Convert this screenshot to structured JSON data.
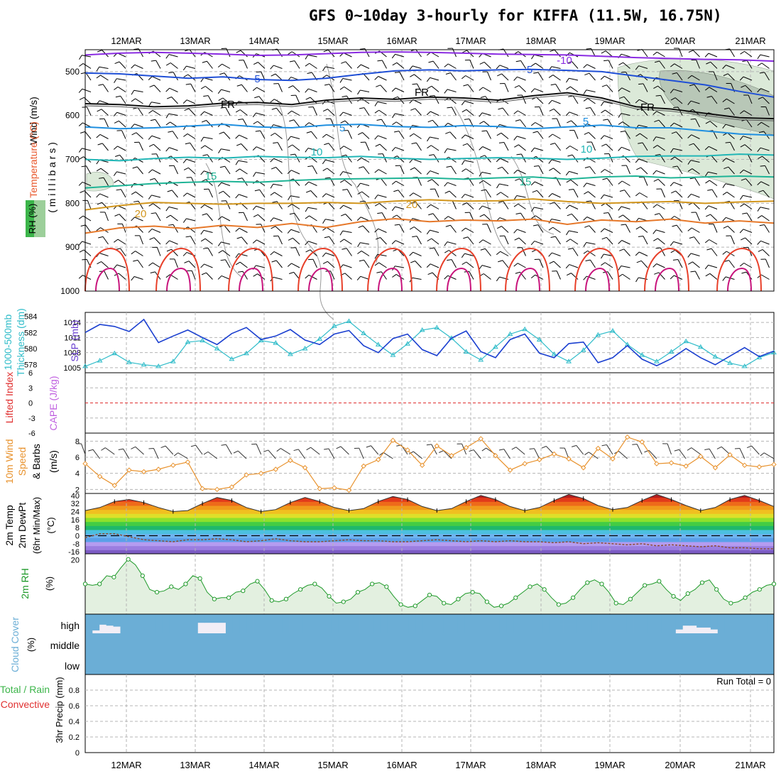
{
  "title": "GFS 0~10day 3-hourly for KIFFA (11.5W, 16.75N)",
  "colors": {
    "grid": "#b4b4b4",
    "wind_barb": "#000000",
    "temp_cold": "#7b2cbf",
    "temp_mid": "#1b63d6",
    "temp_warm": "#e8572c",
    "rh_fill": "#dbe9d8",
    "cloud": "#6baed6",
    "thickness": "#2fbcc9",
    "slp": "#1a3fd0",
    "wind10m": "#e8922d",
    "rh2m": "#1f9a2a",
    "lifted_zero": "#e03030"
  },
  "chart_data": [
    {
      "name": "upper-air",
      "type": "contour",
      "top_dates": [
        "12MAR",
        "13MAR",
        "14MAR",
        "15MAR",
        "16MAR",
        "17MAR",
        "18MAR",
        "19MAR",
        "20MAR",
        "21MAR"
      ],
      "ylabel_parts": [
        "Wind (m/s)",
        "Temperature (°C)",
        "RH (%)",
        "( m i l l i b a r s )"
      ],
      "y_ticks": [
        500,
        600,
        700,
        800,
        900,
        1000
      ],
      "ylim": [
        450,
        1000
      ],
      "contours": [
        {
          "label": "-10",
          "color": "#8a2be2",
          "values": [
            462,
            458,
            456,
            458,
            460,
            463,
            462,
            459,
            456,
            455,
            456,
            458,
            460,
            461,
            462,
            465,
            468,
            470,
            472,
            473,
            476
          ]
        },
        {
          "label": "-5",
          "color": "#1f4fd6",
          "values": [
            503,
            505,
            510,
            515,
            512,
            518,
            520,
            515,
            506,
            498,
            496,
            498,
            496,
            495,
            497,
            500,
            510,
            520,
            530,
            545,
            558
          ]
        },
        {
          "label": "FR",
          "color": "#111111",
          "values": [
            573,
            575,
            580,
            578,
            572,
            570,
            575,
            565,
            560,
            563,
            558,
            560,
            565,
            555,
            548,
            560,
            580,
            585,
            595,
            605,
            607
          ]
        },
        {
          "label": "5",
          "color": "#1f8fe0",
          "values": [
            626,
            630,
            628,
            624,
            620,
            626,
            628,
            622,
            620,
            625,
            627,
            623,
            625,
            630,
            626,
            622,
            628,
            628,
            635,
            642,
            645
          ]
        },
        {
          "label": "10",
          "color": "#22b6b6",
          "values": [
            700,
            703,
            698,
            695,
            697,
            693,
            695,
            696,
            693,
            697,
            700,
            698,
            696,
            697,
            700,
            697,
            693,
            692,
            692,
            688,
            690
          ]
        },
        {
          "label": "15",
          "color": "#1fb496",
          "values": [
            765,
            760,
            755,
            752,
            750,
            752,
            748,
            745,
            744,
            743,
            742,
            745,
            742,
            740,
            745,
            740,
            738,
            742,
            740,
            738,
            740
          ]
        },
        {
          "label": "20",
          "color": "#d2961e",
          "values": [
            815,
            805,
            798,
            800,
            802,
            800,
            800,
            798,
            800,
            795,
            792,
            795,
            794,
            790,
            796,
            800,
            798,
            796,
            800,
            797,
            795
          ]
        },
        {
          "label": "25",
          "color": "#e6782a",
          "values": [
            868,
            856,
            852,
            858,
            850,
            855,
            846,
            855,
            842,
            835,
            842,
            838,
            840,
            836,
            848,
            838,
            842,
            836,
            845,
            840,
            845
          ]
        }
      ]
    },
    {
      "name": "thickness-slp",
      "type": "line",
      "ylabel_left": "1000-500mb Thickness (dm)",
      "ylabel_right": "SLP (mb)",
      "thickness_ticks": [
        578,
        580,
        582,
        584
      ],
      "slp_ticks": [
        1005,
        1008,
        1011,
        1014
      ],
      "series": [
        {
          "name": "Thickness (dm)",
          "ylim": [
            577,
            584.5
          ],
          "values": [
            577.8,
            578.5,
            579.4,
            578.3,
            578.0,
            577.8,
            578.4,
            580.8,
            581.0,
            580.0,
            578.7,
            579.4,
            581.0,
            580.7,
            579.3,
            580.0,
            581.2,
            582.8,
            583.4,
            581.9,
            580.5,
            579.2,
            580.6,
            582.3,
            582.6,
            581.3,
            579.6,
            578.6,
            580.2,
            581.8,
            582.4,
            581.1,
            579.3,
            578.4,
            579.8,
            581.7,
            582.2,
            580.5,
            579.2,
            578.4,
            579.6,
            580.9,
            580.2,
            579.0,
            578.2,
            577.8,
            578.9,
            579.5
          ]
        },
        {
          "name": "SLP (mb)",
          "ylim": [
            1004,
            1016
          ],
          "values": [
            1012.0,
            1013.6,
            1013.2,
            1012.2,
            1014.6,
            1010.0,
            1011.3,
            1012.5,
            1011.0,
            1009.6,
            1011.8,
            1013.0,
            1010.6,
            1011.3,
            1012.6,
            1010.5,
            1009.6,
            1011.7,
            1012.4,
            1009.4,
            1008.0,
            1010.8,
            1011.7,
            1008.6,
            1007.4,
            1010.9,
            1012.3,
            1008.2,
            1007.0,
            1010.6,
            1011.7,
            1007.9,
            1007.0,
            1009.8,
            1010.1,
            1006.0,
            1007.0,
            1009.4,
            1006.7,
            1005.4,
            1006.8,
            1008.8,
            1007.0,
            1005.6,
            1007.3,
            1009.0,
            1007.2,
            1008.3
          ]
        }
      ]
    },
    {
      "name": "lifted-cape",
      "type": "line",
      "ylabel_left": "Lifted Index",
      "ylabel_right": "CAPE (J/kg)",
      "y_ticks": [
        -6,
        -3,
        0,
        3,
        6
      ],
      "tick_labels": [
        "6",
        "3",
        "0",
        "-3",
        "-6"
      ],
      "ylim": [
        -6,
        6
      ],
      "zero_line": 0
    },
    {
      "name": "wind10m",
      "type": "line",
      "ylabel": "10m Wind Speed & Barbs (m/s)",
      "y_ticks": [
        2,
        4,
        6,
        8
      ],
      "ylim": [
        1.5,
        9
      ],
      "values": [
        5.2,
        3.6,
        2.5,
        4.4,
        4.2,
        4.5,
        5.0,
        5.4,
        2.1,
        2.0,
        2.3,
        3.8,
        4.0,
        4.5,
        5.6,
        4.7,
        2.1,
        2.2,
        1.9,
        4.9,
        5.7,
        8.1,
        6.9,
        5.0,
        7.4,
        6.2,
        7.2,
        8.3,
        6.2,
        4.4,
        5.2,
        5.7,
        6.4,
        5.8,
        4.7,
        7.1,
        5.8,
        8.5,
        7.9,
        5.2,
        5.3,
        4.9,
        6.1,
        4.7,
        6.3,
        5.0,
        4.8,
        5.1
      ]
    },
    {
      "name": "temp2m",
      "type": "area",
      "ylabel": "2m Temp 2m DewPt (6hr Min/Max) (°C)",
      "y_ticks": [
        -16,
        -8,
        0,
        8,
        16,
        24,
        32,
        40
      ],
      "ylim": [
        -18,
        42
      ],
      "temperature": [
        25,
        28,
        34,
        36,
        33,
        28,
        24,
        25,
        32,
        38,
        35,
        28,
        24,
        26,
        33,
        38,
        34,
        28,
        25,
        27,
        34,
        39,
        36,
        29,
        25,
        27,
        34,
        40,
        36,
        29,
        25,
        28,
        35,
        41,
        37,
        30,
        26,
        28,
        35,
        41,
        36,
        30,
        25,
        28,
        36,
        40,
        35,
        29
      ],
      "dewpoint": [
        -2,
        2,
        2,
        -1,
        -4,
        -5,
        -6,
        -4,
        -4,
        -3,
        -4,
        -6,
        -5,
        -3,
        -5,
        -6,
        -6,
        -5,
        -4,
        -5,
        -5,
        -6,
        -6,
        -5,
        -4,
        -5,
        -6,
        -5,
        -6,
        -5,
        -6,
        -6,
        -7,
        -6,
        -8,
        -7,
        -8,
        -9,
        -8,
        -10,
        -9,
        -10,
        -11,
        -10,
        -12,
        -12,
        -13,
        -13
      ]
    },
    {
      "name": "rh2m",
      "type": "line",
      "ylabel": "2m RH (%)",
      "y_ticks": [
        20
      ],
      "ylim": [
        0,
        22
      ],
      "values": [
        11,
        10.5,
        11,
        14,
        13.5,
        17,
        20,
        18,
        14,
        9,
        8,
        8.5,
        10,
        9,
        11,
        14,
        13,
        8,
        5.5,
        6,
        6,
        8,
        8.5,
        11,
        12,
        9,
        5,
        4.5,
        5.5,
        7.5,
        9,
        10.5,
        11,
        9.5,
        6.5,
        4,
        4.5,
        5.5,
        8,
        9,
        11,
        11.5,
        10,
        6.5,
        3.5,
        2.5,
        3,
        5,
        7,
        6.5,
        4,
        3.5,
        5.5,
        7.5,
        8,
        7.5,
        4.5,
        2.5,
        3,
        4,
        6,
        8,
        10,
        11,
        9,
        6,
        3.5,
        4,
        6,
        9,
        11.5,
        12.5,
        11,
        8,
        4,
        3.5,
        5.5,
        8,
        10.5,
        11,
        12,
        9,
        6.5,
        5,
        7.5,
        9,
        11.5,
        12.5,
        9,
        5.5,
        4,
        4.5,
        6,
        8,
        9,
        10.5,
        11
      ]
    },
    {
      "name": "cloud",
      "type": "bar",
      "ylabel": "Cloud Cover (%)",
      "level_labels": [
        "high",
        "middle",
        "low"
      ],
      "high_values": [
        100,
        85,
        55,
        60,
        65,
        100,
        100,
        100,
        100,
        100,
        100,
        100,
        100,
        100,
        100,
        100,
        45,
        45,
        45,
        45,
        100,
        100,
        100,
        100,
        100,
        100,
        100,
        100,
        100,
        100,
        100,
        100,
        100,
        100,
        100,
        100,
        100,
        100,
        100,
        100,
        100,
        100,
        100,
        100,
        100,
        100,
        100,
        100,
        100,
        100,
        100,
        100,
        100,
        100,
        100,
        100,
        100,
        100,
        100,
        100,
        100,
        100,
        100,
        100,
        100,
        100,
        100,
        100,
        100,
        100,
        100,
        100,
        100,
        100,
        100,
        100,
        100,
        100,
        100,
        100,
        100,
        100,
        100,
        100,
        80,
        60,
        60,
        70,
        70,
        80,
        100,
        100,
        100,
        100,
        100,
        100,
        100,
        100
      ]
    },
    {
      "name": "precip",
      "type": "bar",
      "ylabel": "3hr Precip (mm)",
      "legend": [
        "Total / Rain",
        "Convective"
      ],
      "y_ticks": [
        0,
        0.2,
        0.4,
        0.6,
        0.8
      ],
      "ylim": [
        0,
        1
      ],
      "run_total": "Run Total = 0",
      "bottom_dates": [
        "12MAR",
        "13MAR",
        "14MAR",
        "15MAR",
        "16MAR",
        "17MAR",
        "18MAR",
        "19MAR",
        "20MAR",
        "21MAR"
      ]
    }
  ]
}
